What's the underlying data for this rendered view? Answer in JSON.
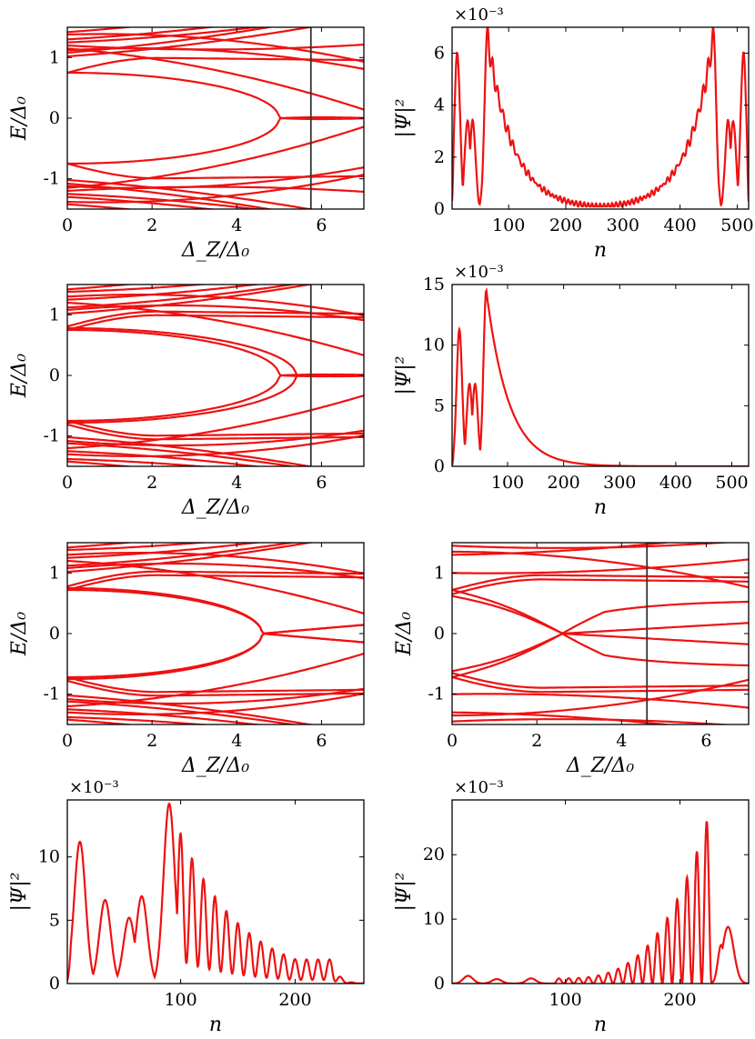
{
  "colors": {
    "curve": "#ee1111",
    "marker": "#333333",
    "axis": "#000000"
  },
  "labels": {
    "E": "E/Δ₀",
    "DZ": "Δ_Z/Δ₀",
    "n": "n",
    "psi": "|Ψ|²",
    "mult": "×10⁻³"
  },
  "chart_data": [
    {
      "id": "p1",
      "type": "line",
      "subtype": "spectrum",
      "xlim": [
        0,
        7
      ],
      "ylim": [
        -1.5,
        1.5
      ],
      "xticks": [
        "0",
        "2",
        "4",
        "6"
      ],
      "yticks": [
        "-1",
        "0",
        "1"
      ],
      "xlabel_key": "DZ",
      "ylabel_key": "E",
      "marker_x": 5.75,
      "levels": [
        {
          "type": "gap",
          "E0": 0.75,
          "cross": 5.0,
          "cross_after": "zero"
        },
        {
          "type": "band",
          "E0": 1.02,
          "slope": 0.05
        },
        {
          "type": "band",
          "E0": 1.08,
          "slope": 0.06
        },
        {
          "type": "band",
          "E0": 1.12,
          "slope": 0.04
        },
        {
          "type": "band",
          "E0": 1.25,
          "slope": 0.03
        },
        {
          "type": "band",
          "E0": 1.3,
          "slope": 0.04
        },
        {
          "type": "band",
          "E0": 1.38,
          "slope": 0.02
        },
        {
          "type": "band",
          "E0": 1.42,
          "slope": 0.05
        },
        {
          "type": "band",
          "E0": 1.2,
          "slope": -0.04
        },
        {
          "type": "band",
          "E0": 1.15,
          "slope": -0.06
        }
      ]
    },
    {
      "id": "p2",
      "type": "line",
      "subtype": "wavefunction",
      "xlim": [
        1,
        520
      ],
      "ylim": [
        0,
        7
      ],
      "yscale": "×10⁻³",
      "xticks": [
        "100",
        "200",
        "300",
        "400",
        "500"
      ],
      "yticks": [
        "0",
        "2",
        "4",
        "6"
      ],
      "xlabel_key": "n",
      "ylabel_key": "psi",
      "peaks": [
        [
          10,
          6.0
        ],
        [
          28,
          3.4
        ],
        [
          37,
          3.4
        ],
        [
          63,
          7.0
        ]
      ],
      "decay_length": 45,
      "symmetric": true,
      "oscillation": 0.12
    },
    {
      "id": "p3",
      "type": "line",
      "subtype": "spectrum",
      "xlim": [
        0,
        7
      ],
      "ylim": [
        -1.5,
        1.5
      ],
      "xticks": [
        "0",
        "2",
        "4",
        "6"
      ],
      "yticks": [
        "-1",
        "0",
        "1"
      ],
      "xlabel_key": "DZ",
      "ylabel_key": "E",
      "marker_x": 5.75,
      "levels": [
        {
          "type": "gap",
          "E0": 0.75,
          "cross": 5.0,
          "cross_after": "zero"
        },
        {
          "type": "gap",
          "E0": 0.78,
          "cross": 5.4,
          "cross_after": "zero"
        },
        {
          "type": "band",
          "E0": 1.02,
          "slope": 0.05
        },
        {
          "type": "band",
          "E0": 1.08,
          "slope": 0.06
        },
        {
          "type": "band",
          "E0": 1.12,
          "slope": 0.04
        },
        {
          "type": "band",
          "E0": 1.25,
          "slope": 0.03
        },
        {
          "type": "band",
          "E0": 1.3,
          "slope": 0.04
        },
        {
          "type": "band",
          "E0": 1.38,
          "slope": 0.02
        },
        {
          "type": "band",
          "E0": 1.42,
          "slope": 0.05
        },
        {
          "type": "band",
          "E0": 1.2,
          "slope": -0.04
        }
      ]
    },
    {
      "id": "p4",
      "type": "line",
      "subtype": "wavefunction",
      "xlim": [
        1,
        530
      ],
      "ylim": [
        0,
        15
      ],
      "yscale": "×10⁻³",
      "xticks": [
        "100",
        "200",
        "300",
        "400",
        "500"
      ],
      "yticks": [
        "0",
        "5",
        "10",
        "15"
      ],
      "xlabel_key": "n",
      "ylabel_key": "psi",
      "peaks": [
        [
          14,
          11.3
        ],
        [
          32,
          6.8
        ],
        [
          42,
          6.8
        ],
        [
          62,
          14.5
        ]
      ],
      "decay_length": 40,
      "symmetric": false,
      "oscillation": 0.0
    },
    {
      "id": "p5",
      "type": "line",
      "subtype": "spectrum",
      "xlim": [
        0,
        7
      ],
      "ylim": [
        -1.5,
        1.5
      ],
      "xticks": [
        "0",
        "2",
        "4",
        "6"
      ],
      "yticks": [
        "-1",
        "0",
        "1"
      ],
      "xlabel_key": "DZ",
      "ylabel_key": "E",
      "marker_x": null,
      "levels": [
        {
          "type": "gap",
          "E0": 0.72,
          "cross": 4.6,
          "cross_after": "fan"
        },
        {
          "type": "gap",
          "E0": 0.75,
          "cross": 4.6,
          "cross_after": "fan"
        },
        {
          "type": "band",
          "E0": 1.02,
          "slope": 0.05
        },
        {
          "type": "band",
          "E0": 1.08,
          "slope": 0.06
        },
        {
          "type": "band",
          "E0": 1.12,
          "slope": 0.04
        },
        {
          "type": "band",
          "E0": 1.25,
          "slope": 0.03
        },
        {
          "type": "band",
          "E0": 1.3,
          "slope": 0.04
        },
        {
          "type": "band",
          "E0": 1.38,
          "slope": 0.02
        },
        {
          "type": "band",
          "E0": 1.42,
          "slope": 0.05
        },
        {
          "type": "band",
          "E0": 1.2,
          "slope": -0.04
        }
      ]
    },
    {
      "id": "p6",
      "type": "line",
      "subtype": "spectrum",
      "xlim": [
        0,
        7
      ],
      "ylim": [
        -1.5,
        1.5
      ],
      "xticks": [
        "0",
        "2",
        "4",
        "6"
      ],
      "yticks": [
        "-1",
        "0",
        "1"
      ],
      "xlabel_key": "DZ",
      "ylabel_key": "E",
      "marker_x": 4.6,
      "levels": [
        {
          "type": "gap",
          "E0": 0.72,
          "cross": 2.6,
          "cross_after": "split"
        },
        {
          "type": "gap",
          "E0": 0.62,
          "cross": 2.6,
          "cross_after": "split2"
        },
        {
          "type": "band",
          "E0": 1.0,
          "slope": -0.01
        },
        {
          "type": "band",
          "E0": 1.35,
          "slope": 0.0
        },
        {
          "type": "band",
          "E0": 1.3,
          "slope": 0.01
        },
        {
          "type": "band",
          "E0": 1.45,
          "slope": -0.03
        }
      ]
    },
    {
      "id": "p7",
      "type": "line",
      "subtype": "wavefunction",
      "xlim": [
        1,
        260
      ],
      "ylim": [
        0,
        14.5
      ],
      "yscale": "×10⁻³",
      "xticks": [
        "100",
        "200"
      ],
      "yticks": [
        "0",
        "5",
        "10"
      ],
      "xlabel_key": "n",
      "ylabel_key": "psi",
      "peaks": [
        [
          12,
          11.2
        ],
        [
          34,
          6.6
        ],
        [
          55,
          5.2
        ],
        [
          66,
          6.9
        ],
        [
          90,
          14.2
        ]
      ],
      "decay_length": 55,
      "symmetric": false,
      "oscillation": 0.85,
      "osc_period": 10,
      "osc_end": 232
    },
    {
      "id": "p8",
      "type": "line",
      "subtype": "wavefunction",
      "xlim": [
        1,
        260
      ],
      "ylim": [
        0,
        28.5
      ],
      "yscale": "×10⁻³",
      "xticks": [
        "100",
        "200"
      ],
      "yticks": [
        "0",
        "10",
        "20"
      ],
      "xlabel_key": "n",
      "ylabel_key": "psi",
      "mirror_peaks": [
        [
          15,
          1.2
        ],
        [
          40,
          0.7
        ],
        [
          70,
          0.8
        ]
      ],
      "growth_start": 90,
      "growth_end": 228,
      "osc_period": 8.6,
      "peak_val": 28.0,
      "tail": [
        [
          242,
          8.8
        ]
      ]
    }
  ]
}
